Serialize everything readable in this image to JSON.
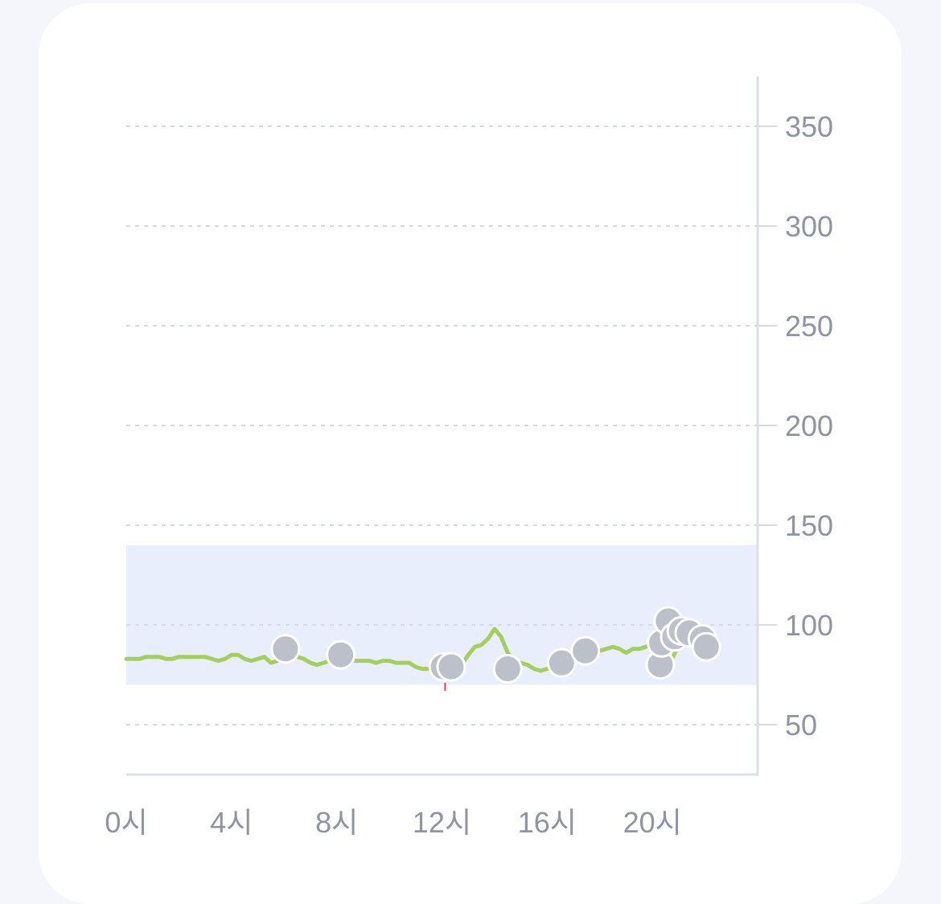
{
  "chart_data": {
    "type": "line",
    "x_ticks": [
      {
        "x": 0,
        "label": "0시"
      },
      {
        "x": 4,
        "label": "4시"
      },
      {
        "x": 8,
        "label": "8시"
      },
      {
        "x": 12,
        "label": "12시"
      },
      {
        "x": 16,
        "label": "16시"
      },
      {
        "x": 20,
        "label": "20시"
      }
    ],
    "y_ticks": [
      {
        "y": 50,
        "label": "50"
      },
      {
        "y": 100,
        "label": "100"
      },
      {
        "y": 150,
        "label": "150"
      },
      {
        "y": 200,
        "label": "200"
      },
      {
        "y": 250,
        "label": "250"
      },
      {
        "y": 300,
        "label": "300"
      },
      {
        "y": 350,
        "label": "350"
      }
    ],
    "xlim": [
      0,
      24
    ],
    "ylim": [
      25,
      375
    ],
    "target_range": [
      70,
      140
    ],
    "grid": true,
    "series": [
      {
        "kind": "continuous",
        "color": "#a4cf5f",
        "points": [
          [
            0,
            83
          ],
          [
            0.5,
            83
          ],
          [
            0.75,
            84
          ],
          [
            1.25,
            84
          ],
          [
            1.5,
            83
          ],
          [
            1.75,
            83
          ],
          [
            2,
            84
          ],
          [
            3,
            84
          ],
          [
            3.5,
            82
          ],
          [
            3.75,
            83
          ],
          [
            4,
            85
          ],
          [
            4.25,
            85
          ],
          [
            4.5,
            83
          ],
          [
            4.75,
            82
          ],
          [
            5,
            83
          ],
          [
            5.25,
            84
          ],
          [
            5.5,
            81
          ],
          [
            5.75,
            82
          ],
          [
            6,
            86
          ],
          [
            6.5,
            84
          ],
          [
            6.75,
            83
          ],
          [
            7,
            81
          ],
          [
            7.25,
            80
          ],
          [
            7.5,
            81
          ],
          [
            7.75,
            82
          ],
          [
            8,
            81
          ],
          [
            8.5,
            82
          ],
          [
            9,
            82
          ],
          [
            9.25,
            82
          ],
          [
            9.5,
            81
          ],
          [
            9.75,
            82
          ],
          [
            10,
            82
          ],
          [
            10.25,
            81
          ],
          [
            10.75,
            81
          ],
          [
            11,
            79
          ],
          [
            11.25,
            78
          ],
          [
            11.75,
            78
          ],
          [
            12,
            78
          ],
          [
            12.5,
            80
          ],
          [
            12.75,
            80
          ],
          [
            13,
            85
          ],
          [
            13.25,
            89
          ],
          [
            13.5,
            90
          ],
          [
            13.75,
            93
          ],
          [
            14,
            98
          ],
          [
            14.25,
            94
          ],
          [
            14.5,
            86
          ],
          [
            14.75,
            82
          ],
          [
            15,
            81
          ],
          [
            15.25,
            80
          ],
          [
            15.5,
            78
          ],
          [
            15.75,
            77
          ],
          [
            16,
            78
          ],
          [
            16.5,
            80
          ],
          [
            16.75,
            81
          ],
          [
            17,
            83
          ],
          [
            17.5,
            85
          ],
          [
            18,
            87
          ],
          [
            18.5,
            89
          ],
          [
            18.75,
            88
          ],
          [
            19,
            86
          ],
          [
            19.25,
            88
          ],
          [
            19.5,
            88
          ],
          [
            19.75,
            89
          ],
          [
            20,
            91
          ],
          [
            20.25,
            87
          ],
          [
            20.5,
            81
          ],
          [
            20.75,
            83
          ],
          [
            21,
            90
          ],
          [
            21.5,
            95
          ],
          [
            21.75,
            93
          ],
          [
            22,
            91
          ]
        ]
      },
      {
        "kind": "measurements",
        "color": "#bcc0cb",
        "points": [
          [
            6.05,
            88
          ],
          [
            8.15,
            85
          ],
          [
            12.05,
            79
          ],
          [
            12.35,
            79
          ],
          [
            14.5,
            78
          ],
          [
            16.55,
            81
          ],
          [
            17.45,
            87
          ],
          [
            20.3,
            80
          ],
          [
            20.35,
            91
          ],
          [
            20.6,
            102
          ],
          [
            20.85,
            94
          ],
          [
            21.1,
            97
          ],
          [
            21.4,
            96
          ],
          [
            21.9,
            93
          ],
          [
            22.05,
            89
          ]
        ]
      }
    ],
    "annotation_marker": {
      "x": 12.12,
      "y": 71,
      "color": "#e0405a"
    }
  }
}
